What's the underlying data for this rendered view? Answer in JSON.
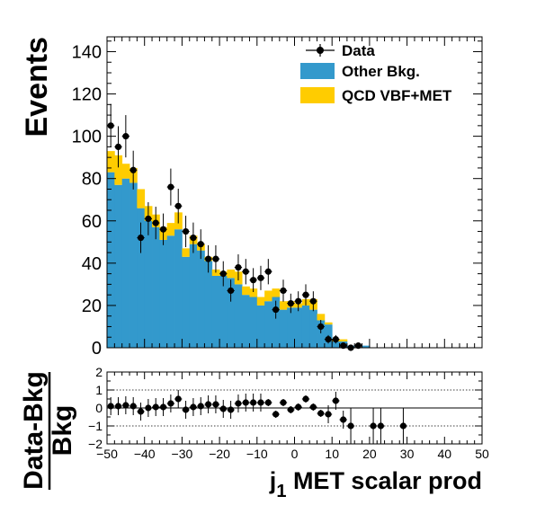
{
  "chart_data": {
    "type": "bar",
    "bin_edges": [
      -50,
      -48,
      -46,
      -44,
      -42,
      -40,
      -38,
      -36,
      -34,
      -32,
      -30,
      -28,
      -26,
      -24,
      -22,
      -20,
      -18,
      -16,
      -14,
      -12,
      -10,
      -8,
      -6,
      -4,
      -2,
      0,
      2,
      4,
      6,
      8,
      10,
      12,
      14,
      16,
      18,
      20,
      22,
      24,
      26,
      28,
      30,
      32,
      34,
      36,
      38,
      40,
      42,
      44,
      46,
      48,
      50
    ],
    "series": [
      {
        "name": "Other Bkg.",
        "color": "#3399cc",
        "values": [
          83,
          77,
          80,
          78,
          66,
          60,
          57,
          51,
          53,
          56,
          43,
          49,
          46,
          41,
          34,
          34,
          33,
          30,
          25,
          24,
          20,
          22,
          24,
          18,
          19,
          19,
          20,
          18,
          13,
          11,
          3,
          3,
          1,
          0,
          1,
          0,
          0,
          0,
          0,
          0,
          0,
          0,
          0,
          0,
          0,
          0,
          0,
          0,
          0,
          0
        ]
      },
      {
        "name": "QCD VBF+MET",
        "color": "#ffcc00",
        "values": [
          10,
          14,
          7,
          7,
          9,
          7,
          6,
          6,
          6,
          8,
          4,
          4,
          3,
          2,
          3,
          2,
          4,
          6,
          4,
          4,
          4,
          5,
          4,
          4,
          3,
          2,
          3,
          5,
          3,
          1,
          1,
          1,
          0,
          0,
          0,
          0,
          0,
          0,
          0,
          0,
          0,
          0,
          0,
          0,
          0,
          0,
          0,
          0,
          0,
          0
        ]
      }
    ],
    "data_series": {
      "name": "Data",
      "x": [
        -49,
        -47,
        -45,
        -43,
        -41,
        -39,
        -37,
        -35,
        -33,
        -31,
        -29,
        -27,
        -25,
        -23,
        -21,
        -19,
        -17,
        -15,
        -13,
        -11,
        -9,
        -7,
        -5,
        -3,
        -1,
        1,
        3,
        5,
        7,
        9,
        11,
        13,
        15,
        17
      ],
      "y": [
        105,
        95,
        100,
        84,
        52,
        61,
        59,
        56,
        76,
        67,
        55,
        52,
        49,
        42,
        42,
        35,
        27,
        38,
        36,
        32,
        33,
        36,
        18,
        27,
        21,
        22,
        25,
        22,
        10,
        4,
        4,
        1,
        0,
        1
      ],
      "ratio": [
        0.1,
        0.1,
        0.15,
        0.1,
        -0.2,
        0.0,
        0.05,
        0.05,
        0.25,
        0.5,
        -0.1,
        0.05,
        0.1,
        0.2,
        0.2,
        -0.05,
        -0.1,
        0.25,
        0.3,
        0.3,
        0.3,
        0.3,
        -0.35,
        0.3,
        -0.1,
        0.05,
        0.5,
        0.05,
        -0.3,
        -0.35,
        0.4,
        -0.65,
        -1.0,
        null,
        null,
        -1.0,
        -1.0,
        null,
        null,
        null,
        -1.0
      ]
    },
    "ratio_points": {
      "x": [
        -49,
        -47,
        -45,
        -43,
        -41,
        -39,
        -37,
        -35,
        -33,
        -31,
        -29,
        -27,
        -25,
        -23,
        -21,
        -19,
        -17,
        -15,
        -13,
        -11,
        -9,
        -7,
        -5,
        -3,
        -1,
        1,
        3,
        5,
        7,
        9,
        11,
        13,
        15,
        21,
        23,
        29
      ],
      "y": [
        0.1,
        0.1,
        0.15,
        0.1,
        -0.2,
        0.0,
        0.05,
        0.05,
        0.25,
        0.5,
        -0.1,
        0.05,
        0.1,
        0.2,
        0.2,
        -0.05,
        -0.1,
        0.25,
        0.3,
        0.3,
        0.3,
        0.3,
        -0.35,
        0.3,
        -0.1,
        0.05,
        0.5,
        0.05,
        -0.3,
        -0.35,
        0.4,
        -0.65,
        -1.0,
        -1.0,
        -1.0,
        -1.0
      ]
    },
    "top_ylabel": "Events",
    "top_ylim": [
      0,
      147
    ],
    "top_yticks": [
      "0",
      "20",
      "40",
      "60",
      "80",
      "100",
      "120",
      "140"
    ],
    "ratio_ylabel_num": "Data-Bkg",
    "ratio_ylabel_den": "Bkg",
    "ratio_ylim": [
      -2,
      2
    ],
    "ratio_yticks": [
      "−2",
      "−1",
      "0",
      "1",
      "2"
    ],
    "xlabel_sub": "1",
    "xlabel_prefix": "j",
    "xlabel_rest": " MET scalar prod",
    "xlim": [
      -50,
      50
    ],
    "xticks": [
      "−50",
      "−40",
      "−30",
      "−20",
      "−10",
      "0",
      "10",
      "20",
      "30",
      "40",
      "50"
    ],
    "legend": {
      "data": "Data",
      "other": "Other Bkg.",
      "qcd": "QCD VBF+MET",
      "placement": "top-right"
    },
    "colors": {
      "other": "#3399cc",
      "qcd": "#ffcc00",
      "data": "#000000"
    }
  }
}
